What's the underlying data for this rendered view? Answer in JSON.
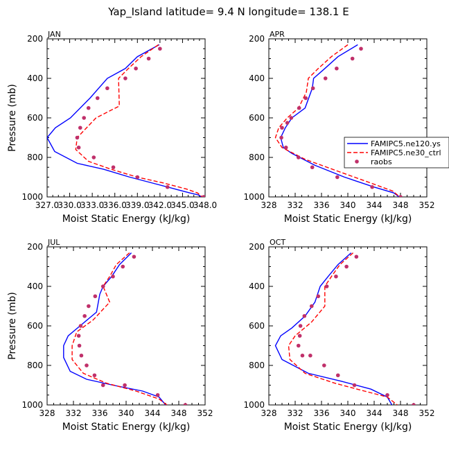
{
  "figure": {
    "title": "Yap_Island  latitude= 9.4 N longitude= 138.1 E"
  },
  "legend": {
    "entries": [
      {
        "label": "FAMIPC5.ne120.ys",
        "color": "#0000ff",
        "style": "solid"
      },
      {
        "label": "FAMIPC5.ne30_ctrl",
        "color": "#ff0000",
        "style": "dashed"
      },
      {
        "label": "raobs",
        "color": "#c0306a",
        "style": "marker"
      }
    ]
  },
  "chart_data": [
    {
      "type": "line",
      "panel": "JAN",
      "xlabel": "Moist Static Energy (kJ/kg)",
      "ylabel": "Pressure (mb)",
      "xlim": [
        327.0,
        348.0
      ],
      "ylim": [
        1000,
        200
      ],
      "xticks": [
        327.0,
        330.0,
        333.0,
        336.0,
        339.0,
        342.0,
        345.0,
        348.0
      ],
      "xtick_labels": [
        "327.0",
        "330.0",
        "333.0",
        "336.0",
        "339.0",
        "342.0",
        "345.0",
        "348.0"
      ],
      "yticks": [
        200,
        400,
        600,
        800,
        1000
      ],
      "series": [
        {
          "name": "FAMIPC5.ne120.ys",
          "x": [
            341.9,
            339.0,
            337.4,
            335.0,
            332.7,
            330.1,
            328.1,
            327.0,
            328.0,
            331.0,
            334.5,
            338.0,
            341.0,
            344.0,
            346.0,
            347.1,
            347.5
          ],
          "y": [
            230,
            290,
            350,
            400,
            500,
            600,
            650,
            700,
            770,
            830,
            860,
            900,
            930,
            960,
            980,
            990,
            1000
          ]
        },
        {
          "name": "FAMIPC5.ne30_ctrl",
          "x": [
            341.8,
            339.5,
            337.8,
            336.5,
            336.6,
            333.5,
            331.0,
            330.8,
            332.5,
            335.5,
            339.0,
            342.5,
            345.5,
            347.0,
            347.6
          ],
          "y": [
            230,
            290,
            350,
            400,
            540,
            600,
            700,
            760,
            820,
            860,
            900,
            930,
            960,
            980,
            1000
          ]
        },
        {
          "name": "raobs",
          "x": [
            342.0,
            340.5,
            338.8,
            337.4,
            335.0,
            333.7,
            332.5,
            331.9,
            331.4,
            331.0,
            331.2,
            333.2,
            335.8,
            339.0,
            343.0,
            347.8
          ],
          "y": [
            250,
            300,
            350,
            400,
            450,
            500,
            550,
            600,
            650,
            700,
            750,
            800,
            850,
            900,
            950,
            1000
          ]
        }
      ]
    },
    {
      "type": "line",
      "panel": "APR",
      "xlabel": "Moist Static Energy (kJ/kg)",
      "ylabel": "",
      "xlim": [
        328,
        352
      ],
      "ylim": [
        1000,
        200
      ],
      "xticks": [
        328,
        332,
        336,
        340,
        344,
        348,
        352
      ],
      "xtick_labels": [
        "328",
        "332",
        "336",
        "340",
        "344",
        "348",
        "352"
      ],
      "yticks": [
        200,
        400,
        600,
        800,
        1000
      ],
      "series": [
        {
          "name": "FAMIPC5.ne120.ys",
          "x": [
            341.5,
            338.5,
            336.5,
            334.8,
            334.6,
            333.5,
            331.5,
            330.5,
            329.8,
            330.2,
            331.5,
            335.0,
            339.5,
            344.0,
            347.0,
            347.8
          ],
          "y": [
            230,
            290,
            350,
            400,
            450,
            550,
            600,
            650,
            700,
            750,
            780,
            840,
            900,
            950,
            980,
            1000
          ]
        },
        {
          "name": "FAMIPC5.ne30_ctrl",
          "x": [
            340.0,
            337.5,
            335.5,
            334.0,
            333.7,
            332.5,
            330.8,
            329.5,
            329.0,
            330.0,
            333.5,
            338.5,
            343.5,
            346.8,
            347.9
          ],
          "y": [
            230,
            290,
            350,
            400,
            470,
            550,
            600,
            650,
            700,
            750,
            810,
            870,
            930,
            970,
            1000
          ]
        },
        {
          "name": "raobs",
          "x": [
            342.0,
            340.7,
            338.3,
            336.6,
            334.7,
            333.6,
            332.6,
            331.4,
            330.8,
            330.0,
            329.9,
            330.6,
            332.5,
            334.6,
            338.4,
            343.7,
            348.0
          ],
          "y": [
            250,
            300,
            350,
            400,
            450,
            500,
            550,
            600,
            625,
            650,
            700,
            750,
            800,
            850,
            900,
            950,
            1000
          ]
        }
      ]
    },
    {
      "type": "line",
      "panel": "JUL",
      "xlabel": "Moist Static Energy (kJ/kg)",
      "ylabel": "Pressure (mb)",
      "xlim": [
        328,
        352
      ],
      "ylim": [
        1000,
        200
      ],
      "xticks": [
        328,
        332,
        336,
        340,
        344,
        348,
        352
      ],
      "xtick_labels": [
        "328",
        "332",
        "336",
        "340",
        "344",
        "348",
        "352"
      ],
      "yticks": [
        200,
        400,
        600,
        800,
        1000
      ],
      "series": [
        {
          "name": "FAMIPC5.ne120.ys",
          "x": [
            340.8,
            339.0,
            337.8,
            336.5,
            336.0,
            335.5,
            333.0,
            331.2,
            330.5,
            330.5,
            331.5,
            334.0,
            338.0,
            342.5,
            345.0,
            346.0
          ],
          "y": [
            230,
            290,
            350,
            400,
            440,
            530,
            600,
            650,
            700,
            760,
            830,
            870,
            900,
            930,
            960,
            1000
          ]
        },
        {
          "name": "FAMIPC5.ne30_ctrl",
          "x": [
            340.5,
            338.5,
            337.5,
            336.5,
            337.5,
            335.0,
            332.5,
            331.8,
            331.8,
            333.5,
            337.0,
            341.5,
            345.0,
            346.2
          ],
          "y": [
            230,
            290,
            350,
            400,
            480,
            570,
            630,
            700,
            770,
            840,
            890,
            930,
            970,
            1000
          ]
        },
        {
          "name": "raobs",
          "x": [
            341.2,
            339.5,
            338.0,
            336.5,
            335.3,
            334.3,
            333.7,
            333.1,
            332.8,
            332.9,
            333.2,
            334.0,
            335.2,
            336.5,
            339.8,
            344.8,
            349.0
          ],
          "y": [
            250,
            300,
            350,
            400,
            450,
            500,
            550,
            600,
            650,
            700,
            750,
            800,
            850,
            900,
            900,
            950,
            1000
          ]
        }
      ]
    },
    {
      "type": "line",
      "panel": "OCT",
      "xlabel": "Moist Static Energy (kJ/kg)",
      "ylabel": "",
      "xlim": [
        328,
        352
      ],
      "ylim": [
        1000,
        200
      ],
      "xticks": [
        328,
        332,
        336,
        340,
        344,
        348,
        352
      ],
      "xtick_labels": [
        "328",
        "332",
        "336",
        "340",
        "344",
        "348",
        "352"
      ],
      "yticks": [
        200,
        400,
        600,
        800,
        1000
      ],
      "series": [
        {
          "name": "FAMIPC5.ne120.ys",
          "x": [
            340.5,
            338.5,
            337.0,
            335.8,
            335.0,
            333.5,
            331.5,
            329.8,
            329.0,
            330.0,
            334.0,
            339.0,
            343.5,
            346.0,
            346.7
          ],
          "y": [
            230,
            290,
            350,
            400,
            480,
            550,
            610,
            650,
            700,
            770,
            840,
            880,
            920,
            960,
            1000
          ]
        },
        {
          "name": "FAMIPC5.ne30_ctrl",
          "x": [
            340.8,
            338.8,
            337.5,
            336.5,
            336.5,
            334.5,
            332.0,
            331.0,
            331.2,
            333.5,
            338.0,
            342.5,
            346.0,
            347.5
          ],
          "y": [
            230,
            290,
            350,
            400,
            500,
            580,
            650,
            700,
            770,
            840,
            890,
            930,
            960,
            1000
          ]
        },
        {
          "name": "raobs",
          "x": [
            341.3,
            339.8,
            338.2,
            336.8,
            335.5,
            334.5,
            333.4,
            332.8,
            332.7,
            332.5,
            333.1,
            334.3,
            336.4,
            338.5,
            341.0,
            346.0,
            350.0
          ],
          "y": [
            250,
            300,
            350,
            400,
            450,
            500,
            550,
            600,
            650,
            700,
            750,
            750,
            800,
            850,
            900,
            950,
            1000
          ]
        }
      ]
    }
  ]
}
